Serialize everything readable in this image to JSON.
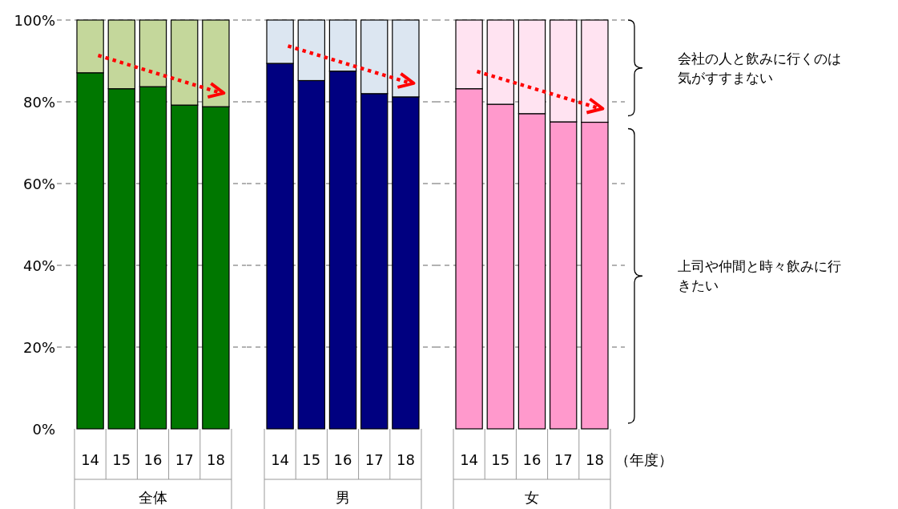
{
  "chart_data": [
    {
      "type": "bar",
      "stacked": true,
      "xlabel": "全体",
      "categories": [
        "14",
        "15",
        "16",
        "17",
        "18"
      ],
      "series": [
        {
          "color": "#007700",
          "values": [
            87.1,
            83.2,
            83.7,
            79.2,
            78.8
          ]
        },
        {
          "color": "#c4d79b",
          "values": [
            12.9,
            16.8,
            16.3,
            20.8,
            21.2
          ]
        }
      ],
      "ylim": [
        0,
        100
      ],
      "yticks": [
        {
          "value": 0,
          "label": "0%"
        },
        {
          "value": 20,
          "label": "20%"
        },
        {
          "value": 40,
          "label": "40%"
        },
        {
          "value": 60,
          "label": "60%"
        },
        {
          "value": 80,
          "label": "80%"
        },
        {
          "value": 100,
          "label": "100%"
        }
      ],
      "grid": "y"
    },
    {
      "type": "bar",
      "stacked": true,
      "xlabel": "男",
      "categories": [
        "14",
        "15",
        "16",
        "17",
        "18"
      ],
      "series": [
        {
          "color": "#000080",
          "values": [
            89.4,
            85.2,
            87.5,
            82.0,
            81.2
          ]
        },
        {
          "color": "#dce6f1",
          "values": [
            10.6,
            14.8,
            12.5,
            18.0,
            18.8
          ]
        }
      ],
      "ylim": [
        0,
        100
      ],
      "yticks": [
        {
          "value": 0,
          "label": null
        },
        {
          "value": 20,
          "label": null
        },
        {
          "value": 40,
          "label": null
        },
        {
          "value": 60,
          "label": null
        },
        {
          "value": 80,
          "label": null
        },
        {
          "value": 100,
          "label": null
        }
      ],
      "grid": "y",
      "tick_labels": "x"
    },
    {
      "type": "bar",
      "stacked": true,
      "xlabel": "女",
      "categories": [
        "14",
        "15",
        "16",
        "17",
        "18"
      ],
      "series": [
        {
          "name": "上司や仲間と時々飲みに行きたい",
          "color": "#ff99cc",
          "values": [
            83.2,
            79.4,
            77.1,
            75.1,
            75.0
          ]
        },
        {
          "name": "会社の人と飲みに行くのは気がすすまない",
          "color": "#ffe3f1",
          "values": [
            16.8,
            20.6,
            22.9,
            24.9,
            25.0
          ]
        }
      ],
      "ylim": [
        0,
        100
      ],
      "yticks": [
        {
          "value": 0,
          "label": null
        },
        {
          "value": 20,
          "label": null
        },
        {
          "value": 40,
          "label": null
        },
        {
          "value": 60,
          "label": null
        },
        {
          "value": 80,
          "label": null
        },
        {
          "value": 100,
          "label": null
        }
      ],
      "grid": "y",
      "tick_labels": "x",
      "annotations": [
        "（年度）"
      ]
    }
  ]
}
